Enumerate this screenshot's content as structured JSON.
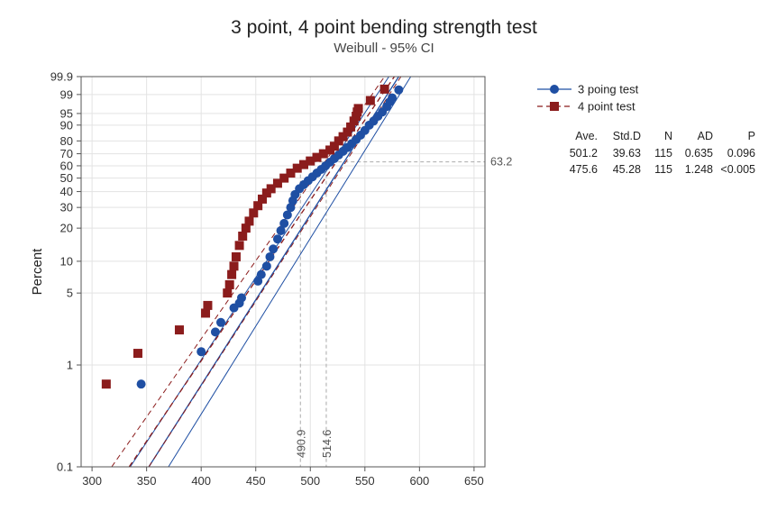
{
  "chart_data": {
    "type": "scatter",
    "title": "3 point, 4 point bending strength test",
    "subtitle": "Weibull - 95% CI",
    "xlabel": "",
    "ylabel": "Percent",
    "scale": "weibull-probability",
    "xlim": [
      290,
      660
    ],
    "x_ticks": [
      "300",
      "350",
      "400",
      "450",
      "500",
      "550",
      "600",
      "650"
    ],
    "y_ticks": [
      "0.1",
      "1",
      "5",
      "10",
      "20",
      "30",
      "40",
      "50",
      "60",
      "70",
      "80",
      "90",
      "95",
      "99",
      "99.9"
    ],
    "grid": true,
    "legend_position": "top-right",
    "reference": {
      "percent": 63.2,
      "percent_label": "63.2",
      "x_values": [
        490.9,
        514.6
      ],
      "x_labels": [
        "490.9",
        "514.6"
      ]
    },
    "series": [
      {
        "name": "3 poing test",
        "color": "#1f4fa3",
        "marker": "circle",
        "line_style": "solid",
        "points": [
          [
            345,
            0.65
          ],
          [
            400,
            1.35
          ],
          [
            413,
            2.1
          ],
          [
            418,
            2.6
          ],
          [
            430,
            3.6
          ],
          [
            435,
            4.0
          ],
          [
            437,
            4.5
          ],
          [
            452,
            6.5
          ],
          [
            455,
            7.5
          ],
          [
            460,
            9
          ],
          [
            463,
            11
          ],
          [
            466,
            13
          ],
          [
            470,
            16
          ],
          [
            473,
            19
          ],
          [
            476,
            22
          ],
          [
            479,
            26
          ],
          [
            482,
            30
          ],
          [
            484,
            34
          ],
          [
            486,
            38
          ],
          [
            490,
            42
          ],
          [
            494,
            45
          ],
          [
            498,
            48
          ],
          [
            502,
            51
          ],
          [
            506,
            54
          ],
          [
            510,
            57
          ],
          [
            514,
            60
          ],
          [
            518,
            63
          ],
          [
            522,
            66
          ],
          [
            526,
            69
          ],
          [
            530,
            72
          ],
          [
            534,
            75
          ],
          [
            538,
            78
          ],
          [
            542,
            81
          ],
          [
            546,
            84
          ],
          [
            550,
            87
          ],
          [
            554,
            90
          ],
          [
            558,
            92
          ],
          [
            562,
            94
          ],
          [
            566,
            95.5
          ],
          [
            570,
            97
          ],
          [
            573,
            98
          ],
          [
            575,
            98.6
          ],
          [
            581,
            99.4
          ]
        ],
        "fit_line": [
          [
            352,
            0.1
          ],
          [
            581,
            99.9
          ]
        ],
        "ci_lower": [
          [
            370,
            0.1
          ],
          [
            592,
            99.9
          ]
        ],
        "ci_upper": [
          [
            335,
            0.1
          ],
          [
            572,
            99.9
          ]
        ]
      },
      {
        "name": "4 point test",
        "color": "#8b1c1c",
        "marker": "square",
        "line_style": "dashed",
        "points": [
          [
            313,
            0.65
          ],
          [
            342,
            1.3
          ],
          [
            380,
            2.2
          ],
          [
            404,
            3.2
          ],
          [
            406,
            3.8
          ],
          [
            424,
            5
          ],
          [
            426,
            6
          ],
          [
            428,
            7.5
          ],
          [
            430,
            9
          ],
          [
            432,
            11
          ],
          [
            435,
            14
          ],
          [
            438,
            17
          ],
          [
            441,
            20
          ],
          [
            444,
            23
          ],
          [
            448,
            27
          ],
          [
            452,
            31
          ],
          [
            456,
            35
          ],
          [
            460,
            39
          ],
          [
            464,
            42
          ],
          [
            470,
            46
          ],
          [
            476,
            50
          ],
          [
            482,
            54
          ],
          [
            488,
            58
          ],
          [
            494,
            61
          ],
          [
            500,
            64
          ],
          [
            506,
            67
          ],
          [
            512,
            70
          ],
          [
            518,
            73
          ],
          [
            522,
            76
          ],
          [
            526,
            80
          ],
          [
            530,
            83
          ],
          [
            534,
            86
          ],
          [
            537,
            89
          ],
          [
            540,
            92
          ],
          [
            542,
            94
          ],
          [
            543,
            95.5
          ],
          [
            544,
            96.5
          ],
          [
            555,
            98.2
          ],
          [
            568,
            99.45
          ]
        ],
        "fit_line": [
          [
            334,
            0.1
          ],
          [
            577,
            99.9
          ]
        ],
        "ci_lower": [
          [
            352,
            0.1
          ],
          [
            583,
            99.9
          ]
        ],
        "ci_upper": [
          [
            318,
            0.1
          ],
          [
            568,
            99.9
          ]
        ]
      }
    ],
    "stats_table": {
      "headers": [
        "Ave.",
        "Std.D",
        "N",
        "AD",
        "P"
      ],
      "rows": [
        [
          "501.2",
          "39.63",
          "115",
          "0.635",
          "0.096"
        ],
        [
          "475.6",
          "45.28",
          "115",
          "1.248",
          "<0.005"
        ]
      ]
    }
  }
}
